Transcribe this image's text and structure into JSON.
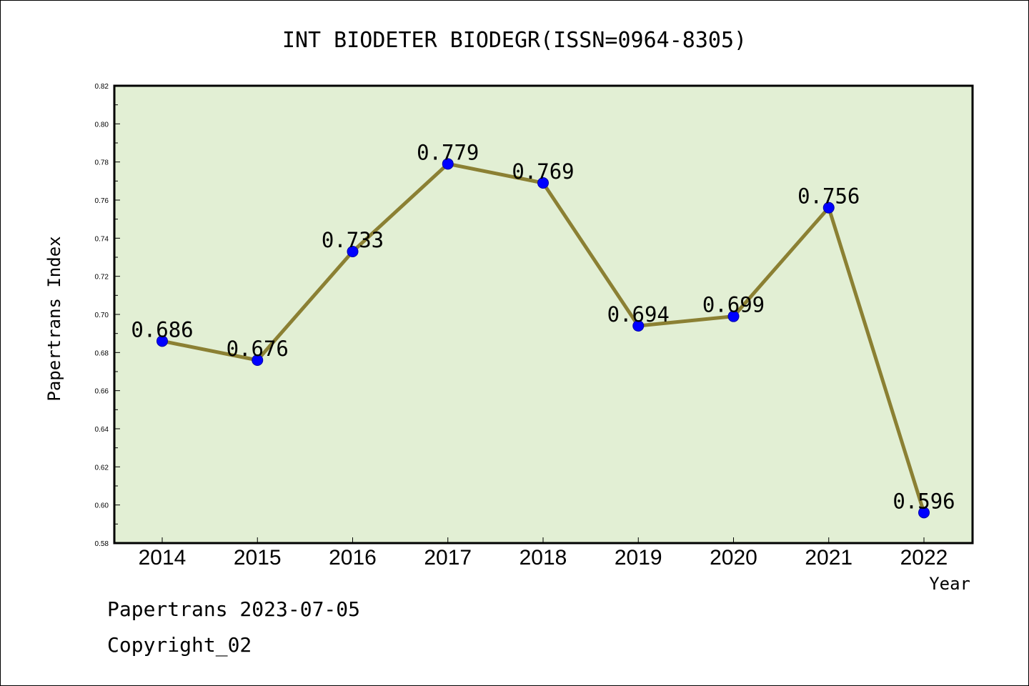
{
  "chart_data": {
    "type": "line",
    "title": "INT BIODETER BIODEGR(ISSN=0964-8305)",
    "xlabel": "Year",
    "ylabel": "Papertrans Index",
    "categories": [
      "2014",
      "2015",
      "2016",
      "2017",
      "2018",
      "2019",
      "2020",
      "2021",
      "2022"
    ],
    "values": [
      0.686,
      0.676,
      0.733,
      0.779,
      0.769,
      0.694,
      0.699,
      0.756,
      0.596
    ],
    "data_labels": [
      "0.686",
      "0.676",
      "0.733",
      "0.779",
      "0.769",
      "0.694",
      "0.699",
      "0.756",
      "0.596"
    ],
    "ylim": [
      0.58,
      0.82
    ],
    "yticks": [
      "0.58",
      "0.60",
      "0.62",
      "0.64",
      "0.66",
      "0.68",
      "0.70",
      "0.72",
      "0.74",
      "0.76",
      "0.78",
      "0.80",
      "0.82"
    ],
    "grid": false,
    "plot_background": "#e2efd4",
    "line_color": "#8b8033",
    "marker_color": "#0000ff"
  },
  "footer": {
    "line1": "Papertrans 2023-07-05",
    "line2": "Copyright_02"
  }
}
